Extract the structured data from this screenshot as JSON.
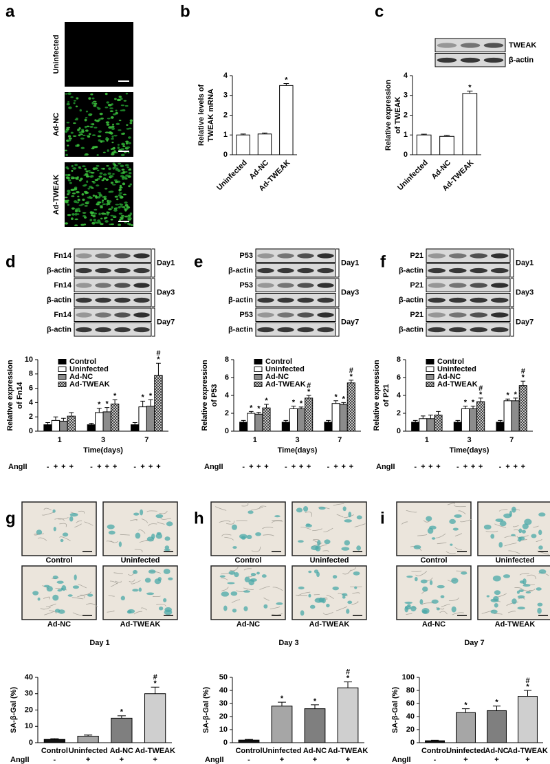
{
  "panel_a": {
    "letter": "a",
    "labels": [
      "Uninfected",
      "Ad-NC",
      "Ad-TWEAK"
    ]
  },
  "chart_data": [
    {
      "type": "bar",
      "letter": "b",
      "ylabel": [
        "Relative levels of",
        "TWEAK mRNA"
      ],
      "categories": [
        "Uninfected",
        "Ad-NC",
        "Ad-TWEAK"
      ],
      "values": [
        1.0,
        1.05,
        3.5
      ],
      "errors": [
        0.05,
        0.05,
        0.1
      ],
      "annotations": [
        null,
        null,
        [
          "*"
        ]
      ],
      "color": "#ffffff",
      "ylim": [
        0,
        4
      ],
      "yticks": [
        0,
        1,
        2,
        3,
        4
      ]
    },
    {
      "type": "bar",
      "letter": "c",
      "blot": {
        "rows": [
          "TWEAK",
          "β-actin"
        ]
      },
      "ylabel": [
        "Relative expression",
        "of TWEAK"
      ],
      "categories": [
        "Uninfected",
        "Ad-NC",
        "Ad-TWEAK"
      ],
      "values": [
        1.0,
        0.93,
        3.1
      ],
      "errors": [
        0.04,
        0.05,
        0.12
      ],
      "annotations": [
        null,
        null,
        [
          "*"
        ]
      ],
      "color": "#ffffff",
      "ylim": [
        0,
        4
      ],
      "yticks": [
        0,
        1,
        2,
        3,
        4
      ]
    },
    {
      "type": "grouped_bar",
      "letter": "d",
      "blot": {
        "rows": [
          "Fn14",
          "β-actin"
        ],
        "groups": [
          "Day1",
          "Day3",
          "Day7"
        ]
      },
      "ylabel": [
        "Relative expression",
        "of Fn14"
      ],
      "xlabel": "Time(days)",
      "categories": [
        "1",
        "3",
        "7"
      ],
      "series": [
        {
          "name": "Control",
          "color": "#000000",
          "values": [
            0.9,
            0.9,
            0.9
          ],
          "errors": [
            0.3,
            0.2,
            0.3
          ],
          "annotations": [
            null,
            null,
            null
          ]
        },
        {
          "name": "Uninfected",
          "color": "#ffffff",
          "values": [
            1.5,
            2.6,
            3.4
          ],
          "errors": [
            0.5,
            0.6,
            0.8
          ],
          "annotations": [
            null,
            [
              "*"
            ],
            [
              "*"
            ]
          ]
        },
        {
          "name": "Ad-NC",
          "color": "#8c8c8c",
          "values": [
            1.4,
            2.7,
            3.5
          ],
          "errors": [
            0.4,
            0.6,
            0.9
          ],
          "annotations": [
            null,
            [
              "*"
            ],
            [
              "*"
            ]
          ]
        },
        {
          "name": "Ad-TWEAK",
          "color": "#555555",
          "hatch": true,
          "values": [
            2.1,
            3.8,
            7.8
          ],
          "errors": [
            0.5,
            0.6,
            1.7
          ],
          "annotations": [
            null,
            [
              "*"
            ],
            [
              "#",
              "*"
            ]
          ]
        }
      ],
      "legend": "upper left",
      "treatment": {
        "label": "AngII",
        "signs": [
          "-",
          "+",
          "+",
          "+"
        ]
      },
      "ylim": [
        0,
        10
      ],
      "yticks": [
        0,
        2,
        4,
        6,
        8,
        10
      ]
    },
    {
      "type": "grouped_bar",
      "letter": "e",
      "blot": {
        "rows": [
          "P53",
          "β-actin"
        ],
        "groups": [
          "Day1",
          "Day3",
          "Day7"
        ]
      },
      "ylabel": [
        "Relative expression",
        "of P53"
      ],
      "xlabel": "Time(days)",
      "categories": [
        "1",
        "3",
        "7"
      ],
      "series": [
        {
          "name": "Control",
          "color": "#000000",
          "values": [
            1.0,
            1.0,
            1.0
          ],
          "errors": [
            0.2,
            0.2,
            0.2
          ],
          "annotations": [
            null,
            null,
            null
          ]
        },
        {
          "name": "Uninfected",
          "color": "#ffffff",
          "values": [
            2.0,
            2.5,
            3.1
          ],
          "errors": [
            0.2,
            0.3,
            0.3
          ],
          "annotations": [
            [
              "*"
            ],
            [
              "*"
            ],
            [
              "*"
            ]
          ]
        },
        {
          "name": "Ad-NC",
          "color": "#8c8c8c",
          "values": [
            1.9,
            2.5,
            3.0
          ],
          "errors": [
            0.2,
            0.2,
            0.2
          ],
          "annotations": [
            [
              "*"
            ],
            [
              "*"
            ],
            [
              "*"
            ]
          ]
        },
        {
          "name": "Ad-TWEAK",
          "color": "#555555",
          "hatch": true,
          "values": [
            2.6,
            3.7,
            5.4
          ],
          "errors": [
            0.4,
            0.3,
            0.3
          ],
          "annotations": [
            [
              "*"
            ],
            [
              "#",
              "*"
            ],
            [
              "#",
              "*"
            ]
          ]
        }
      ],
      "legend": "upper left",
      "treatment": {
        "label": "AngII",
        "signs": [
          "-",
          "+",
          "+",
          "+"
        ]
      },
      "ylim": [
        0,
        8
      ],
      "yticks": [
        0,
        2,
        4,
        6,
        8
      ]
    },
    {
      "type": "grouped_bar",
      "letter": "f",
      "blot": {
        "rows": [
          "P21",
          "β-actin"
        ],
        "groups": [
          "Day1",
          "Day3",
          "Day7"
        ]
      },
      "ylabel": [
        "Relative expression",
        "of P21"
      ],
      "xlabel": "Time(days)",
      "categories": [
        "1",
        "3",
        "7"
      ],
      "series": [
        {
          "name": "Control",
          "color": "#000000",
          "values": [
            1.0,
            1.0,
            1.0
          ],
          "errors": [
            0.2,
            0.2,
            0.2
          ],
          "annotations": [
            null,
            null,
            null
          ]
        },
        {
          "name": "Uninfected",
          "color": "#ffffff",
          "values": [
            1.4,
            2.5,
            3.4
          ],
          "errors": [
            0.3,
            0.3,
            0.2
          ],
          "annotations": [
            null,
            [
              "*"
            ],
            [
              "*"
            ]
          ]
        },
        {
          "name": "Ad-NC",
          "color": "#8c8c8c",
          "values": [
            1.4,
            2.5,
            3.4
          ],
          "errors": [
            0.4,
            0.3,
            0.3
          ],
          "annotations": [
            null,
            [
              "*"
            ],
            [
              "*"
            ]
          ]
        },
        {
          "name": "Ad-TWEAK",
          "color": "#555555",
          "hatch": true,
          "values": [
            1.8,
            3.3,
            5.1
          ],
          "errors": [
            0.4,
            0.4,
            0.5
          ],
          "annotations": [
            null,
            [
              "#",
              "*"
            ],
            [
              "#",
              "*"
            ]
          ]
        }
      ],
      "legend": "upper left",
      "treatment": {
        "label": "AngII",
        "signs": [
          "-",
          "+",
          "+",
          "+"
        ]
      },
      "ylim": [
        0,
        8
      ],
      "yticks": [
        0,
        2,
        4,
        6,
        8
      ]
    },
    {
      "type": "bar",
      "letter": "g",
      "title": "Day 1",
      "ylabel": [
        "SA-β-Gal (%)"
      ],
      "categories": [
        "Control",
        "Uninfected",
        "Ad-NC",
        "Ad-TWEAK"
      ],
      "values": [
        2,
        4,
        15,
        30
      ],
      "errors": [
        0.5,
        0.7,
        1.5,
        4
      ],
      "colors": [
        "#111111",
        "#a6a6a6",
        "#7f7f7f",
        "#cfcfcf"
      ],
      "annotations": [
        null,
        null,
        [
          "*"
        ],
        [
          "#",
          "*"
        ]
      ],
      "treatment": {
        "label": "AngII",
        "signs": [
          "-",
          "+",
          "+",
          "+"
        ]
      },
      "ylim": [
        0,
        40
      ],
      "yticks": [
        0,
        10,
        20,
        30,
        40
      ]
    },
    {
      "type": "bar",
      "letter": "h",
      "title": "Day 3",
      "ylabel": [
        "SA-β-Gal (%)"
      ],
      "categories": [
        "Control",
        "Uninfected",
        "Ad-NC",
        "Ad-TWEAK"
      ],
      "values": [
        2,
        28,
        26,
        42
      ],
      "errors": [
        0.5,
        3,
        3,
        4.5
      ],
      "colors": [
        "#111111",
        "#a6a6a6",
        "#7f7f7f",
        "#cfcfcf"
      ],
      "annotations": [
        null,
        [
          "*"
        ],
        [
          "*"
        ],
        [
          "#",
          "*"
        ]
      ],
      "treatment": {
        "label": "AngII",
        "signs": [
          "-",
          "+",
          "+",
          "+"
        ]
      },
      "ylim": [
        0,
        50
      ],
      "yticks": [
        0,
        10,
        20,
        30,
        40,
        50
      ]
    },
    {
      "type": "bar",
      "letter": "i",
      "title": "Day 7",
      "ylabel": [
        "SA-β-Gal (%)"
      ],
      "categories": [
        "Control",
        "Uninfected",
        "Ad-NC",
        "Ad-TWEAK"
      ],
      "values": [
        3,
        46,
        49,
        71
      ],
      "errors": [
        0.8,
        6,
        7,
        9
      ],
      "colors": [
        "#111111",
        "#a6a6a6",
        "#7f7f7f",
        "#cfcfcf"
      ],
      "annotations": [
        null,
        [
          "*"
        ],
        [
          "*"
        ],
        [
          "#",
          "*"
        ]
      ],
      "treatment": {
        "label": "AngII",
        "signs": [
          "-",
          "+",
          "+",
          "+"
        ]
      },
      "ylim": [
        0,
        100
      ],
      "yticks": [
        0,
        20,
        40,
        60,
        80,
        100
      ]
    }
  ]
}
